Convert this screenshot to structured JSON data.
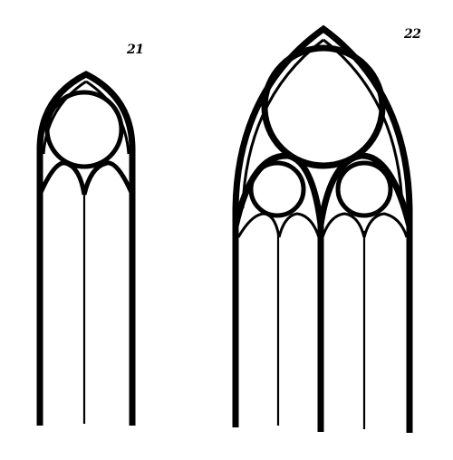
{
  "figures": [
    {
      "label": "21",
      "type": "two-light lancet window with single oculus"
    },
    {
      "label": "22",
      "type": "four-light window with three oculi"
    }
  ],
  "colors": {
    "ink": "#000000",
    "paper": "#ffffff"
  }
}
